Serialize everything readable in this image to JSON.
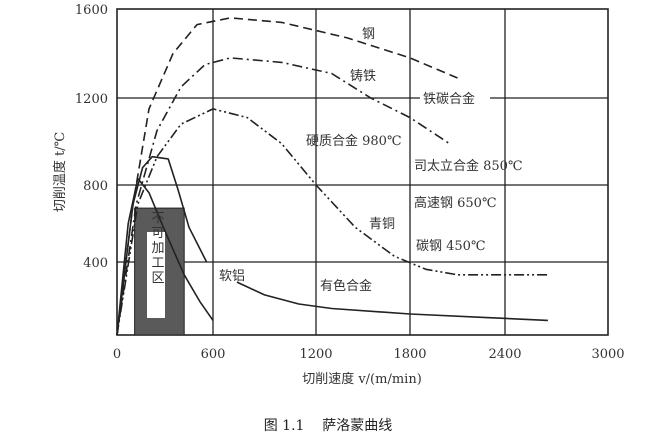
{
  "caption": "图 1.1    萨洛蒙曲线",
  "chart_data": {
    "type": "line",
    "title": "",
    "xlabel": "切削速度 v/(m/min)",
    "ylabel": "切削温度 t/℃",
    "xlim": [
      0,
      3000
    ],
    "ylim": [
      0,
      1600
    ],
    "xticks": [
      "0",
      "600",
      "1200",
      "1800",
      "2400",
      "3000"
    ],
    "yticks": [
      "400",
      "800",
      "1200",
      "1600"
    ],
    "grid": true,
    "series": [
      {
        "name": "钢",
        "style": "dashed",
        "points": [
          [
            0,
            0
          ],
          [
            100,
            700
          ],
          [
            200,
            1150
          ],
          [
            350,
            1400
          ],
          [
            500,
            1530
          ],
          [
            700,
            1560
          ],
          [
            1000,
            1540
          ],
          [
            1400,
            1470
          ],
          [
            1800,
            1380
          ],
          [
            2100,
            1290
          ]
        ]
      },
      {
        "name": "铸铁",
        "style": "dash-dot",
        "points": [
          [
            0,
            0
          ],
          [
            120,
            700
          ],
          [
            250,
            1050
          ],
          [
            400,
            1250
          ],
          [
            550,
            1350
          ],
          [
            700,
            1380
          ],
          [
            1000,
            1360
          ],
          [
            1300,
            1310
          ],
          [
            1550,
            1200
          ],
          [
            1800,
            1110
          ],
          [
            2050,
            990
          ]
        ]
      },
      {
        "name": "青铜",
        "style": "dash-dot-dot",
        "points": [
          [
            0,
            0
          ],
          [
            130,
            700
          ],
          [
            250,
            930
          ],
          [
            400,
            1080
          ],
          [
            600,
            1150
          ],
          [
            800,
            1110
          ],
          [
            1000,
            990
          ],
          [
            1200,
            800
          ],
          [
            1450,
            580
          ],
          [
            1700,
            430
          ],
          [
            1900,
            360
          ],
          [
            2100,
            330
          ],
          [
            2650,
            330
          ]
        ]
      },
      {
        "name": "有色合金",
        "style": "solid",
        "points": [
          [
            0,
            0
          ],
          [
            100,
            700
          ],
          [
            160,
            880
          ],
          [
            220,
            930
          ],
          [
            320,
            920
          ],
          [
            380,
            780
          ],
          [
            450,
            580
          ],
          [
            560,
            400
          ]
        ],
        "continuation": [
          [
            740,
            290
          ],
          [
            900,
            220
          ],
          [
            1100,
            170
          ],
          [
            1300,
            145
          ],
          [
            1800,
            115
          ],
          [
            2300,
            95
          ],
          [
            2650,
            80
          ]
        ]
      },
      {
        "name": "软铝",
        "style": "solid",
        "points": [
          [
            0,
            0
          ],
          [
            70,
            600
          ],
          [
            130,
            830
          ],
          [
            200,
            760
          ],
          [
            300,
            560
          ],
          [
            420,
            330
          ],
          [
            520,
            180
          ],
          [
            600,
            80
          ]
        ]
      }
    ],
    "annotations": [
      "钢",
      "铸铁",
      "铁碳合金",
      "硬质合金 980℃",
      "司太立合金 850℃",
      "高速钢 650℃",
      "青铜",
      "碳钢 450℃",
      "有色合金",
      "软铝"
    ],
    "shaded_region": {
      "label": "不可加工区",
      "x": [
        110,
        420
      ],
      "y": [
        0,
        680
      ],
      "color": "#5a5a5a"
    }
  }
}
